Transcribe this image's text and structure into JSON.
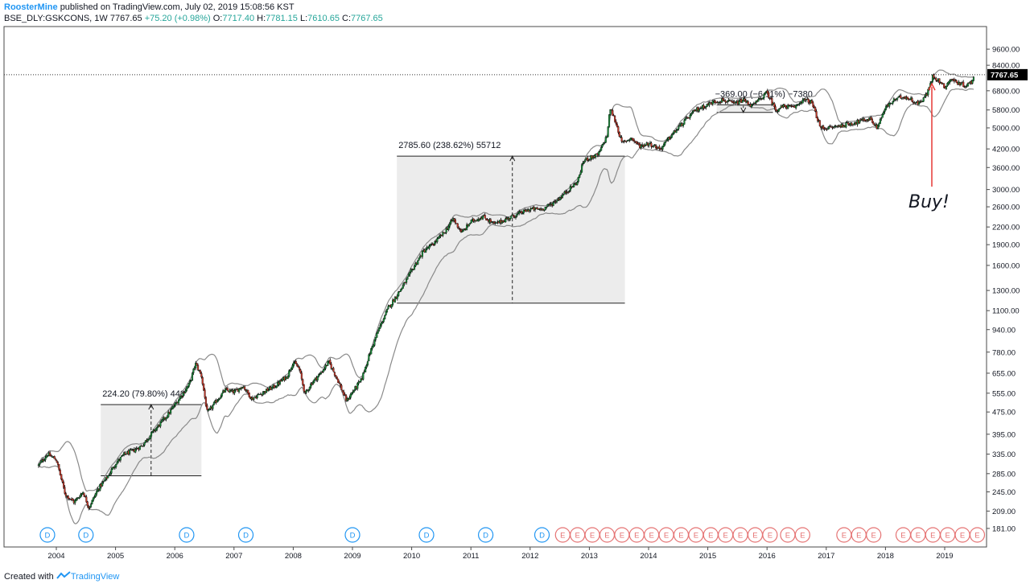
{
  "header": {
    "author": "RoosterMine",
    "published": "published on TradingView.com, July 02, 2019 15:08:56 KST",
    "symbol": "BSE_DLY:GSKCONS, 1W",
    "last": "7767.65",
    "change": "+75.20 (+0.98%)",
    "o_label": "O:",
    "o_value": "7717.40",
    "h_label": "H:",
    "h_value": "7781.15",
    "l_label": "L:",
    "l_value": "7610.65",
    "c_label": "C:",
    "c_value": "7767.65"
  },
  "footer": {
    "created_with": "Created with",
    "brand": "TradingView"
  },
  "colors": {
    "up": "#26a69a",
    "down": "#ef5350",
    "candle_up": "#1b8a3a",
    "candle_down": "#c0392b",
    "band": "#8a8a8a",
    "box": "#ececec",
    "dividend": "#2196f3",
    "earnings": "#e57373",
    "arrow": "#e53935",
    "text": "#131722"
  },
  "chart_data": {
    "type": "candlestick",
    "title": "BSE_DLY:GSKCONS, 1W",
    "log_scale": true,
    "ylim": [
      175,
      9800
    ],
    "y_ticks": [
      "9600.00",
      "8400.00",
      "6800.00",
      "5800.00",
      "5000.00",
      "4200.00",
      "3600.00",
      "3000.00",
      "2600.00",
      "2200.00",
      "1900.00",
      "1600.00",
      "1300.00",
      "1100.00",
      "940.00",
      "780.00",
      "655.00",
      "555.00",
      "475.00",
      "395.00",
      "335.00",
      "285.00",
      "245.00",
      "209.00",
      "181.00"
    ],
    "x_ticks": [
      "2004",
      "2005",
      "2006",
      "2007",
      "2008",
      "2009",
      "2010",
      "2011",
      "2012",
      "2013",
      "2014",
      "2015",
      "2016",
      "2017",
      "2018",
      "2019"
    ],
    "last_price": {
      "value": 7767.65,
      "label": "7767.65"
    },
    "price_path": [
      [
        2003.7,
        305
      ],
      [
        2003.85,
        335
      ],
      [
        2004.0,
        320
      ],
      [
        2004.15,
        240
      ],
      [
        2004.3,
        225
      ],
      [
        2004.45,
        245
      ],
      [
        2004.55,
        215
      ],
      [
        2004.7,
        250
      ],
      [
        2004.85,
        275
      ],
      [
        2005.0,
        310
      ],
      [
        2005.15,
        335
      ],
      [
        2005.3,
        345
      ],
      [
        2005.45,
        360
      ],
      [
        2005.6,
        395
      ],
      [
        2005.75,
        430
      ],
      [
        2005.9,
        470
      ],
      [
        2006.1,
        540
      ],
      [
        2006.25,
        600
      ],
      [
        2006.35,
        710
      ],
      [
        2006.45,
        640
      ],
      [
        2006.55,
        470
      ],
      [
        2006.7,
        520
      ],
      [
        2006.85,
        570
      ],
      [
        2007.0,
        560
      ],
      [
        2007.15,
        590
      ],
      [
        2007.3,
        530
      ],
      [
        2007.5,
        560
      ],
      [
        2007.7,
        590
      ],
      [
        2007.9,
        640
      ],
      [
        2008.0,
        720
      ],
      [
        2008.1,
        680
      ],
      [
        2008.2,
        550
      ],
      [
        2008.3,
        600
      ],
      [
        2008.45,
        650
      ],
      [
        2008.6,
        720
      ],
      [
        2008.75,
        620
      ],
      [
        2008.9,
        520
      ],
      [
        2009.0,
        560
      ],
      [
        2009.15,
        620
      ],
      [
        2009.3,
        780
      ],
      [
        2009.45,
        950
      ],
      [
        2009.6,
        1120
      ],
      [
        2009.75,
        1250
      ],
      [
        2009.9,
        1400
      ],
      [
        2010.05,
        1600
      ],
      [
        2010.2,
        1800
      ],
      [
        2010.35,
        1900
      ],
      [
        2010.55,
        2100
      ],
      [
        2010.7,
        2350
      ],
      [
        2010.85,
        2100
      ],
      [
        2011.0,
        2300
      ],
      [
        2011.2,
        2400
      ],
      [
        2011.4,
        2250
      ],
      [
        2011.6,
        2350
      ],
      [
        2011.8,
        2450
      ],
      [
        2012.0,
        2550
      ],
      [
        2012.2,
        2550
      ],
      [
        2012.35,
        2650
      ],
      [
        2012.5,
        2800
      ],
      [
        2012.65,
        3000
      ],
      [
        2012.8,
        3200
      ],
      [
        2012.9,
        3800
      ],
      [
        2013.0,
        3900
      ],
      [
        2013.15,
        4000
      ],
      [
        2013.3,
        4700
      ],
      [
        2013.35,
        5900
      ],
      [
        2013.45,
        5200
      ],
      [
        2013.55,
        4400
      ],
      [
        2013.7,
        4600
      ],
      [
        2013.85,
        4300
      ],
      [
        2014.0,
        4400
      ],
      [
        2014.2,
        4200
      ],
      [
        2014.35,
        4600
      ],
      [
        2014.5,
        5000
      ],
      [
        2014.65,
        5400
      ],
      [
        2014.8,
        5800
      ],
      [
        2014.95,
        6000
      ],
      [
        2015.1,
        6200
      ],
      [
        2015.25,
        6300
      ],
      [
        2015.45,
        6100
      ],
      [
        2015.6,
        6300
      ],
      [
        2015.75,
        6000
      ],
      [
        2015.9,
        6400
      ],
      [
        2016.0,
        6700
      ],
      [
        2016.15,
        5800
      ],
      [
        2016.3,
        6000
      ],
      [
        2016.45,
        5900
      ],
      [
        2016.6,
        6300
      ],
      [
        2016.75,
        6200
      ],
      [
        2016.85,
        5400
      ],
      [
        2016.9,
        5000
      ],
      [
        2017.05,
        5000
      ],
      [
        2017.25,
        5100
      ],
      [
        2017.45,
        5200
      ],
      [
        2017.6,
        5300
      ],
      [
        2017.75,
        5400
      ],
      [
        2017.85,
        5000
      ],
      [
        2018.0,
        5900
      ],
      [
        2018.15,
        6300
      ],
      [
        2018.3,
        6500
      ],
      [
        2018.45,
        6300
      ],
      [
        2018.55,
        6100
      ],
      [
        2018.7,
        6600
      ],
      [
        2018.8,
        7700
      ],
      [
        2018.9,
        7400
      ],
      [
        2019.0,
        7000
      ],
      [
        2019.1,
        7500
      ],
      [
        2019.2,
        7300
      ],
      [
        2019.35,
        7100
      ],
      [
        2019.45,
        7300
      ],
      [
        2019.5,
        7767.65
      ]
    ],
    "measurements": [
      {
        "label": "224.20 (79.80%) 448",
        "x_start": 2004.75,
        "x_end": 2006.45,
        "y_low": 280,
        "y_high": 505,
        "x_arrow": 2005.6
      },
      {
        "label": "2785.60 (238.62%) 55712",
        "x_start": 2009.75,
        "x_end": 2013.6,
        "y_low": 1170,
        "y_high": 3956,
        "x_arrow": 2011.7
      },
      {
        "label": "−369.00 (−6.11%) −7380",
        "x_start": 2015.15,
        "x_end": 2016.1,
        "y_low": 5684,
        "y_high": 6053,
        "x_arrow": 2015.6
      }
    ],
    "dividends": {
      "label": "D",
      "x": [
        2003.85,
        2004.5,
        2006.2,
        2007.2,
        2009.0,
        2010.25,
        2011.25,
        2012.2
      ]
    },
    "earnings": {
      "label": "E",
      "x": [
        2012.55,
        2012.8,
        2013.05,
        2013.3,
        2013.55,
        2013.8,
        2014.05,
        2014.3,
        2014.55,
        2014.8,
        2015.05,
        2015.3,
        2015.55,
        2015.8,
        2016.05,
        2016.35,
        2016.6,
        2017.3,
        2017.55,
        2017.8,
        2018.3,
        2018.55,
        2018.8,
        2019.05,
        2019.3,
        2019.55
      ]
    },
    "annotation": {
      "text": "Buy!",
      "x": 2019.0,
      "y": 7300
    }
  }
}
